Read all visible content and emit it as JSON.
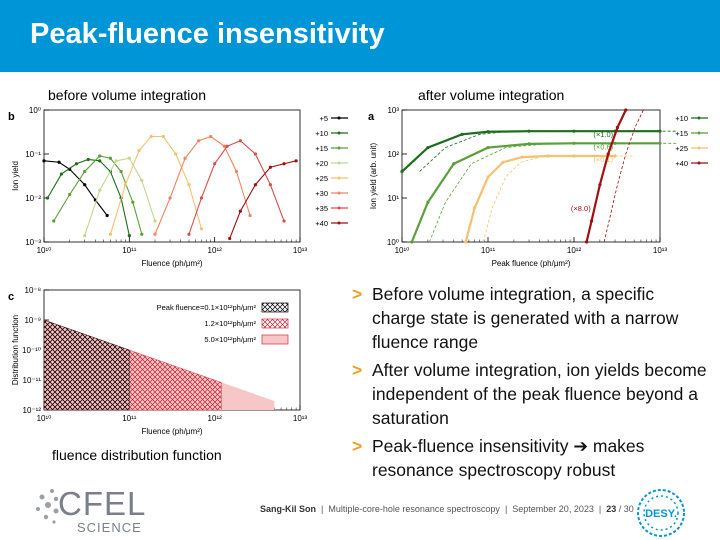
{
  "slide": {
    "title": "Peak-fluence insensitivity",
    "captions": {
      "before": "before volume integration",
      "after": "after volume integration",
      "distribution": "fluence distribution function"
    },
    "bullets": [
      {
        "marker": ">",
        "text": "Before volume integration, a specific charge state is generated with a narrow fluence range"
      },
      {
        "marker": ">",
        "text": "After volume integration, ion yields become independent of the peak fluence beyond a saturation"
      },
      {
        "marker": ">",
        "text": "Peak-fluence insensitivity ➔ makes resonance spectroscopy robust"
      }
    ]
  },
  "footer": {
    "author": "Sang-Kil Son",
    "talk": "Multiple-core-hole resonance spectroscopy",
    "date": "September 20, 2023",
    "page": "23",
    "total": "30",
    "cfel_logo": "CFEL",
    "cfel_sub": "SCIENCE",
    "desy_logo": "DESY."
  },
  "colors": {
    "header": "#0095d6",
    "accent": "#f0a020"
  },
  "chart_data": [
    {
      "type": "line",
      "panel_label": "b",
      "xlabel": "Fluence (ph/μm²)",
      "ylabel": "Ion yield",
      "x_log": true,
      "y_log": true,
      "xlim": [
        10000000000.0,
        10000000000000.0
      ],
      "ylim": [
        0.001,
        1
      ],
      "x_ticks": [
        "10¹⁰",
        "10¹¹",
        "10¹²",
        "10¹³"
      ],
      "y_ticks": [
        "10⁰",
        "10⁻¹",
        "10⁻²",
        "10⁻³"
      ],
      "series": [
        {
          "name": "+5",
          "color": "#000000",
          "x": [
            10000000000.0,
            15000000000.0,
            20000000000.0,
            30000000000.0,
            40000000000.0,
            55000000000.0
          ],
          "y": [
            0.07,
            0.065,
            0.045,
            0.02,
            0.009,
            0.004
          ]
        },
        {
          "name": "+10",
          "color": "#1b6e1b",
          "x": [
            11000000000.0,
            16000000000.0,
            24000000000.0,
            33000000000.0,
            45000000000.0,
            60000000000.0,
            80000000000.0,
            100000000000.0
          ],
          "y": [
            0.01,
            0.035,
            0.06,
            0.075,
            0.07,
            0.04,
            0.01,
            0.0014
          ]
        },
        {
          "name": "+15",
          "color": "#5aa038",
          "x": [
            13000000000.0,
            20000000000.0,
            30000000000.0,
            45000000000.0,
            60000000000.0,
            80000000000.0,
            110000000000.0,
            140000000000.0
          ],
          "y": [
            0.003,
            0.012,
            0.04,
            0.09,
            0.08,
            0.04,
            0.008,
            0.0015
          ]
        },
        {
          "name": "+20",
          "color": "#c0d890",
          "x": [
            30000000000.0,
            45000000000.0,
            70000000000.0,
            100000000000.0,
            140000000000.0,
            200000000000.0
          ],
          "y": [
            0.0014,
            0.015,
            0.07,
            0.08,
            0.025,
            0.003
          ]
        },
        {
          "name": "+25",
          "color": "#f5c070",
          "x": [
            60000000000.0,
            90000000000.0,
            130000000000.0,
            180000000000.0,
            250000000000.0,
            350000000000.0,
            500000000000.0,
            700000000000.0
          ],
          "y": [
            0.0015,
            0.02,
            0.12,
            0.25,
            0.25,
            0.1,
            0.02,
            0.002
          ]
        },
        {
          "name": "+30",
          "color": "#f08560",
          "x": [
            200000000000.0,
            300000000000.0,
            450000000000.0,
            650000000000.0,
            900000000000.0,
            1300000000000.0,
            1800000000000.0,
            2600000000000.0
          ],
          "y": [
            0.0015,
            0.01,
            0.08,
            0.2,
            0.25,
            0.15,
            0.04,
            0.004
          ]
        },
        {
          "name": "+35",
          "color": "#d85050",
          "x": [
            500000000000.0,
            700000000000.0,
            1000000000000.0,
            1400000000000.0,
            2000000000000.0,
            3000000000000.0,
            4500000000000.0,
            6500000000000.0
          ],
          "y": [
            0.0015,
            0.01,
            0.06,
            0.15,
            0.2,
            0.1,
            0.02,
            0.003
          ]
        },
        {
          "name": "+40",
          "color": "#a01010",
          "x": [
            1500000000000.0,
            2000000000000.0,
            3000000000000.0,
            4500000000000.0,
            6500000000000.0,
            9000000000000.0
          ],
          "y": [
            0.0012,
            0.005,
            0.02,
            0.05,
            0.06,
            0.07
          ]
        }
      ]
    },
    {
      "type": "line",
      "panel_label": "a",
      "xlabel": "Peak fluence (ph/μm²)",
      "ylabel": "Ion yield (arb. unit)",
      "x_log": true,
      "y_log": true,
      "xlim": [
        10000000000.0,
        10000000000000.0
      ],
      "ylim": [
        1,
        1000
      ],
      "x_ticks": [
        "10¹⁰",
        "10¹¹",
        "10¹²",
        "10¹³"
      ],
      "y_ticks": [
        "10³",
        "10²",
        "10¹",
        "10⁰"
      ],
      "series": [
        {
          "name": "+10",
          "color": "#1b6e1b",
          "scale_label": "(×1.0)",
          "x": [
            10000000000.0,
            20000000000.0,
            50000000000.0,
            100000000000.0,
            300000000000.0,
            1000000000000.0,
            3000000000000.0,
            10000000000000.0
          ],
          "y": [
            40,
            140,
            280,
            320,
            330,
            330,
            330,
            330
          ]
        },
        {
          "name": "+15",
          "color": "#5aa038",
          "scale_label": "(×0.6)",
          "x": [
            13000000000.0,
            20000000000.0,
            40000000000.0,
            100000000000.0,
            300000000000.0,
            1000000000000.0,
            3000000000000.0,
            10000000000000.0
          ],
          "y": [
            1,
            8,
            60,
            140,
            170,
            175,
            175,
            175
          ]
        },
        {
          "name": "+25",
          "color": "#f5c070",
          "scale_label": "(×0.1)",
          "x": [
            55000000000.0,
            70000000000.0,
            100000000000.0,
            150000000000.0,
            250000000000.0,
            500000000000.0,
            1000000000000.0,
            3000000000000.0
          ],
          "y": [
            1,
            6,
            30,
            65,
            85,
            90,
            90,
            90
          ]
        },
        {
          "name": "+40",
          "color": "#a01010",
          "scale_label": "(×8.0)",
          "x": [
            1400000000000.0,
            1600000000000.0,
            2000000000000.0,
            2500000000000.0,
            3200000000000.0,
            4000000000000.0
          ],
          "y": [
            1,
            3,
            20,
            100,
            400,
            1000
          ]
        }
      ]
    },
    {
      "type": "area",
      "panel_label": "c",
      "xlabel": "Fluence (ph/μm²)",
      "ylabel": "Distribution function",
      "x_log": true,
      "y_log": true,
      "xlim": [
        10000000000.0,
        10000000000000.0
      ],
      "ylim": [
        1e-12,
        1e-08
      ],
      "x_ticks": [
        "10¹⁰",
        "10¹¹",
        "10¹²",
        "10¹³"
      ],
      "y_ticks": [
        "10⁻⁸",
        "10⁻⁹",
        "10⁻¹⁰",
        "10⁻¹¹",
        "10⁻¹²"
      ],
      "series": [
        {
          "name": "Peak fluence=0.1×10¹²ph/μm²",
          "color": "#000000",
          "fill": "crosshatch-black",
          "x": [
            10000000000.0,
            100000000000.0
          ],
          "y": [
            1e-09,
            1e-10
          ]
        },
        {
          "name": "1.2×10¹²ph/μm²",
          "color": "#d03040",
          "fill": "crosshatch-red",
          "x": [
            10000000000.0,
            1200000000000.0
          ],
          "y": [
            1e-09,
            8.3e-12
          ]
        },
        {
          "name": "5.0×10¹²ph/μm²",
          "color": "#d03040",
          "fill": "#f7c6c6",
          "x": [
            10000000000.0,
            5000000000000.0
          ],
          "y": [
            1e-09,
            2e-12
          ]
        }
      ]
    }
  ]
}
